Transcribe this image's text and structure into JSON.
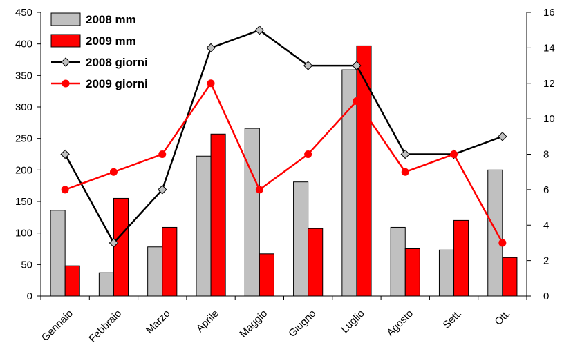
{
  "chart_data": {
    "type": "bar",
    "categories": [
      "Gennaio",
      "Febbraio",
      "Marzo",
      "Aprile",
      "Maggio",
      "Giugno",
      "Luglio",
      "Agosto",
      "Sett.",
      "Ott."
    ],
    "bar_series": [
      {
        "name": "2008 mm",
        "color": "#c0c0c0",
        "values": [
          136,
          37,
          78,
          222,
          266,
          181,
          359,
          109,
          73,
          200
        ]
      },
      {
        "name": "2009 mm",
        "color": "#ff0000",
        "values": [
          48,
          155,
          109,
          257,
          67,
          107,
          397,
          75,
          120,
          61
        ]
      }
    ],
    "line_series": [
      {
        "name": "2008 giorni",
        "color": "#000000",
        "marker": "diamond",
        "marker_fill": "#c0c0c0",
        "values": [
          8,
          3,
          6,
          14,
          15,
          13,
          13,
          8,
          8,
          9
        ]
      },
      {
        "name": "2009 giorni",
        "color": "#ff0000",
        "marker": "circle",
        "marker_fill": "#ff0000",
        "values": [
          6,
          7,
          8,
          12,
          6,
          8,
          11,
          7,
          8,
          3
        ]
      }
    ],
    "y_left": {
      "min": 0,
      "max": 450,
      "ticks": [
        0,
        50,
        100,
        150,
        200,
        250,
        300,
        350,
        400,
        450
      ]
    },
    "y_right": {
      "min": 0,
      "max": 16,
      "ticks": [
        0,
        2,
        4,
        6,
        8,
        10,
        12,
        14,
        16
      ]
    },
    "legend_position": "top-left",
    "grid": false
  }
}
